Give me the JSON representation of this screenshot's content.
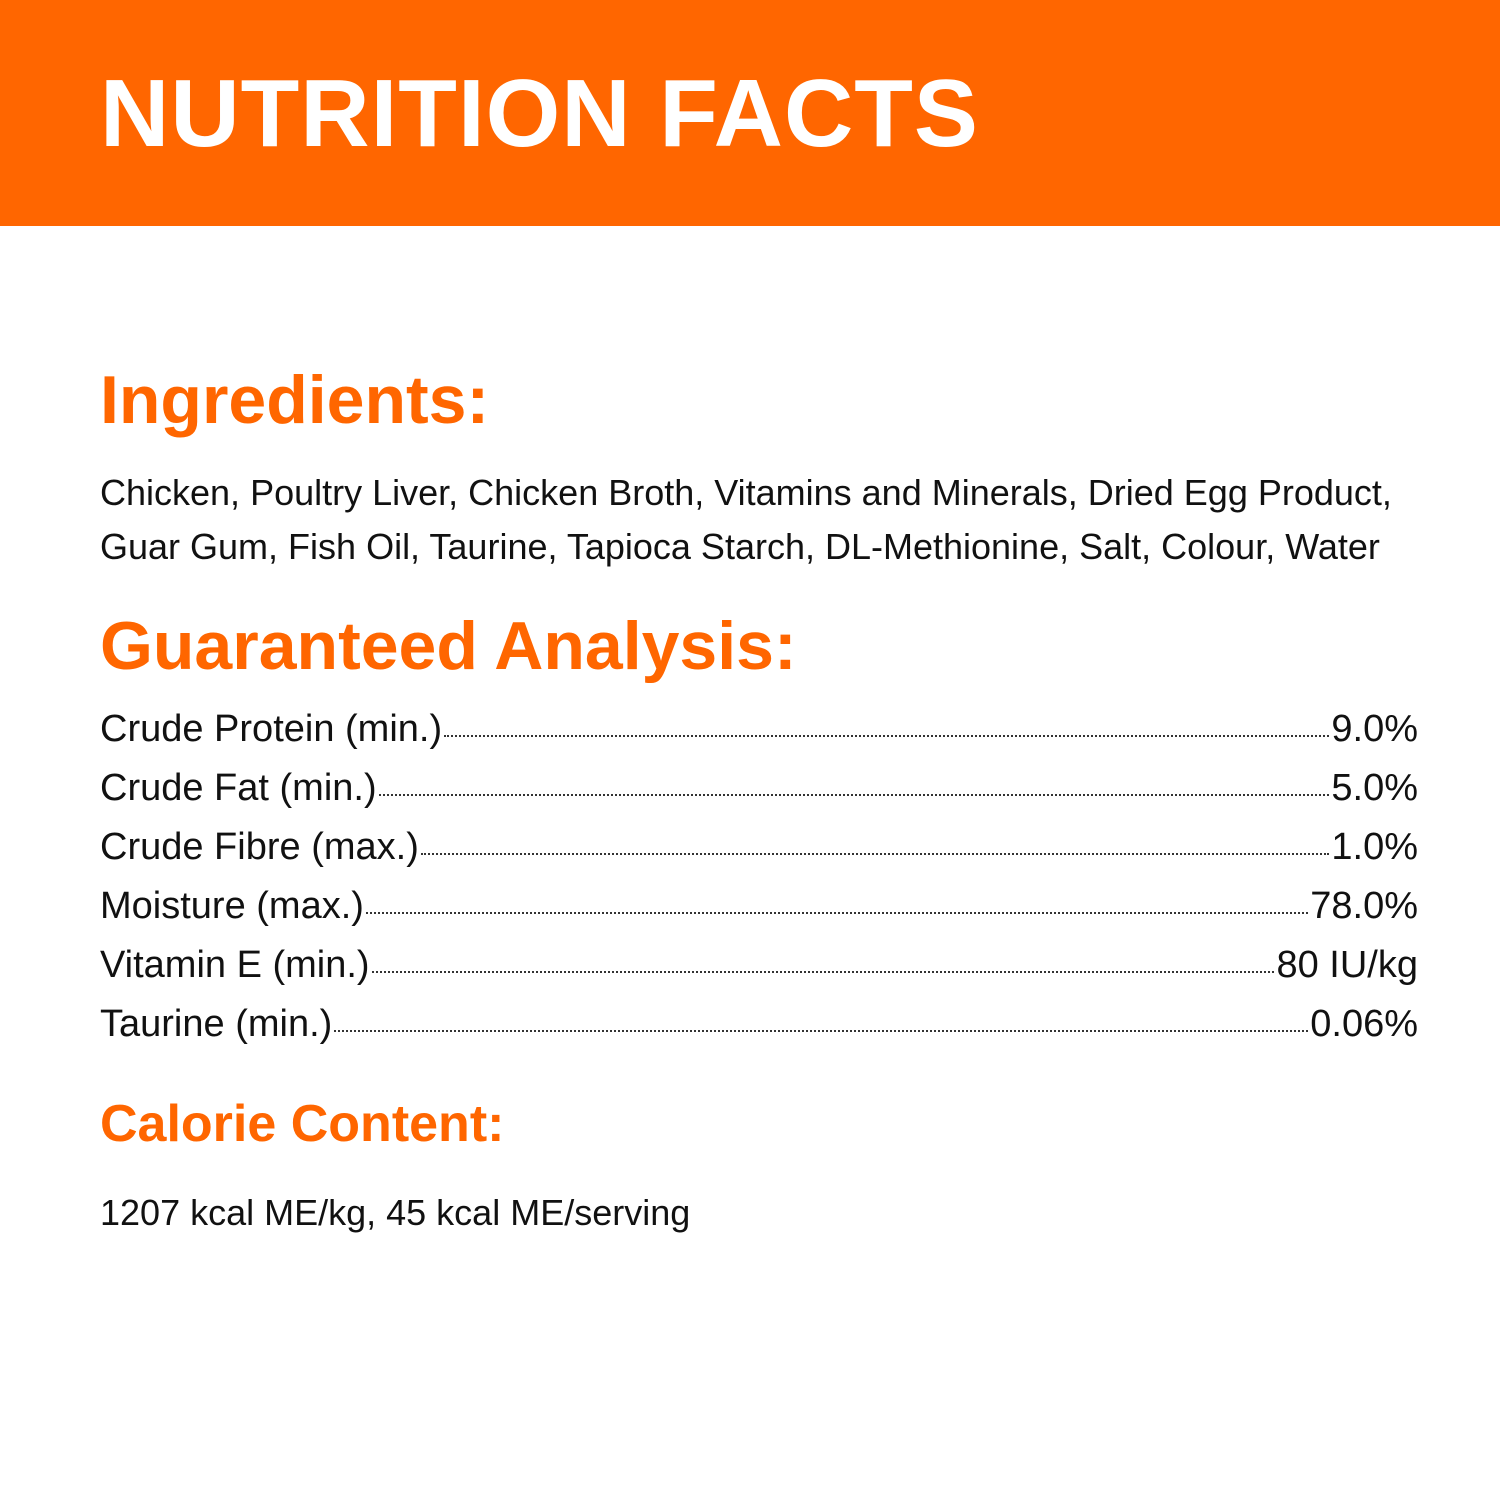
{
  "header": {
    "title": "NUTRITION FACTS"
  },
  "ingredients": {
    "heading": "Ingredients:",
    "text": "Chicken, Poultry Liver, Chicken Broth, Vitamins and Minerals, Dried Egg Product, Guar Gum, Fish Oil, Taurine, Tapioca Starch, DL-Methionine, Salt, Colour, Water"
  },
  "analysis": {
    "heading": "Guaranteed Analysis:",
    "rows": [
      {
        "label": "Crude Protein (min.)",
        "value": "9.0%"
      },
      {
        "label": "Crude Fat (min.)",
        "value": "5.0%"
      },
      {
        "label": "Crude Fibre (max.)",
        "value": "1.0%"
      },
      {
        "label": "Moisture (max.)",
        "value": "78.0%"
      },
      {
        "label": "Vitamin E (min.)",
        "value": "80 IU/kg"
      },
      {
        "label": "Taurine (min.)",
        "value": "0.06%"
      }
    ]
  },
  "calories": {
    "heading": "Calorie Content:",
    "text": "1207 kcal ME/kg, 45 kcal ME/serving"
  },
  "colors": {
    "accent": "#ff6600",
    "text": "#111111",
    "background": "#ffffff"
  }
}
